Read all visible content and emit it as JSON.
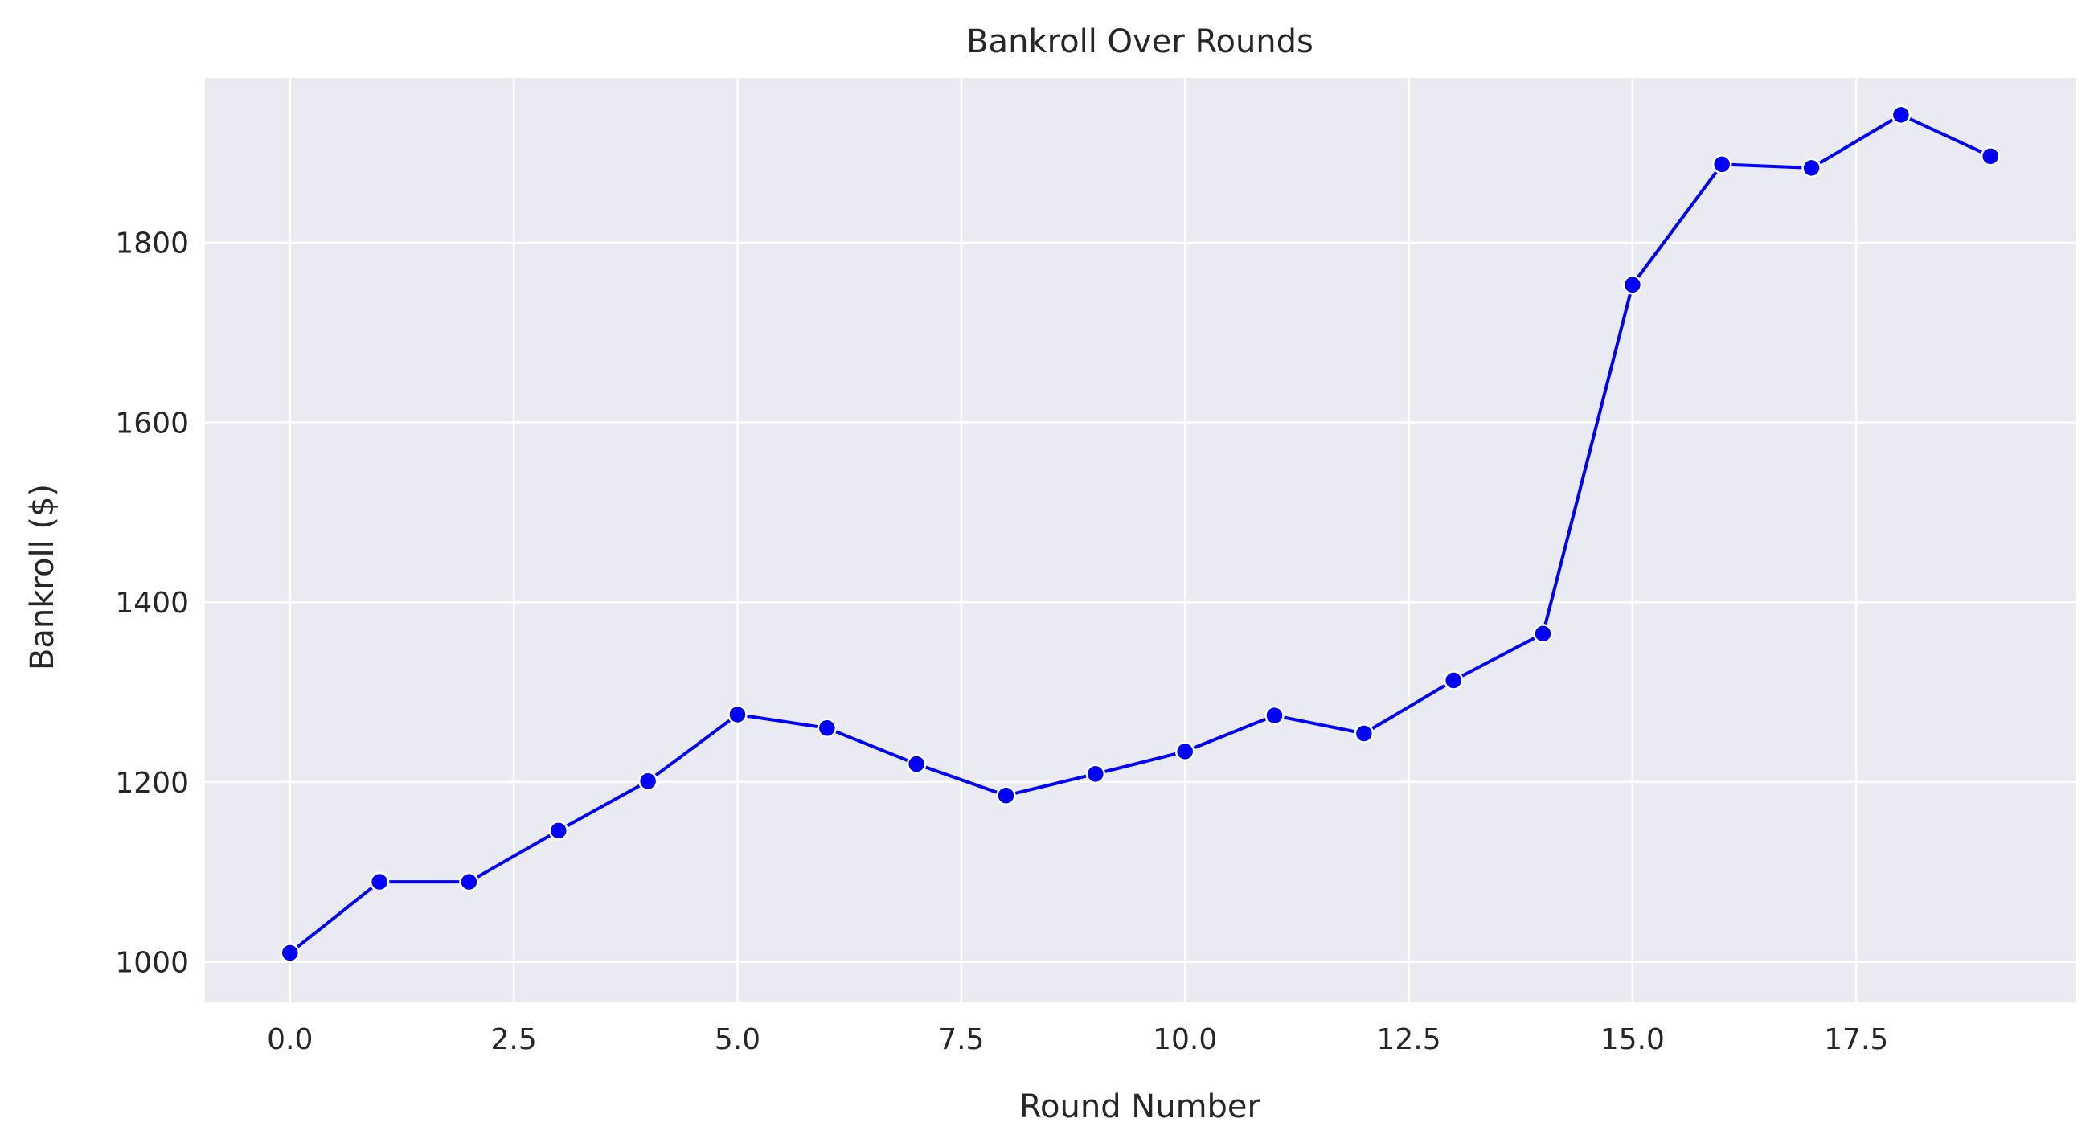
{
  "chart_data": {
    "type": "line",
    "title": "Bankroll Over Rounds",
    "xlabel": "Round Number",
    "ylabel": "Bankroll ($)",
    "xlim": [
      -0.95,
      19.95
    ],
    "ylim": [
      955,
      1983
    ],
    "xticks": [
      0.0,
      2.5,
      5.0,
      7.5,
      10.0,
      12.5,
      15.0,
      17.5
    ],
    "xtick_labels": [
      "0.0",
      "2.5",
      "5.0",
      "7.5",
      "10.0",
      "12.5",
      "15.0",
      "17.5"
    ],
    "yticks": [
      1000,
      1200,
      1400,
      1600,
      1800
    ],
    "ytick_labels": [
      "1000",
      "1200",
      "1400",
      "1600",
      "1800"
    ],
    "grid": true,
    "line_color": "#0000ff",
    "background_color": "#eaeaf2",
    "series": [
      {
        "x": [
          0,
          1,
          2,
          3,
          4,
          5,
          6,
          7,
          8,
          9,
          10,
          11,
          12,
          13,
          14,
          15,
          16,
          17,
          18,
          19
        ],
        "values": [
          1010,
          1089,
          1089,
          1146,
          1201,
          1275,
          1260,
          1220,
          1185,
          1209,
          1234,
          1274,
          1254,
          1313,
          1365,
          1753,
          1887,
          1883,
          1942,
          1896
        ]
      }
    ]
  }
}
